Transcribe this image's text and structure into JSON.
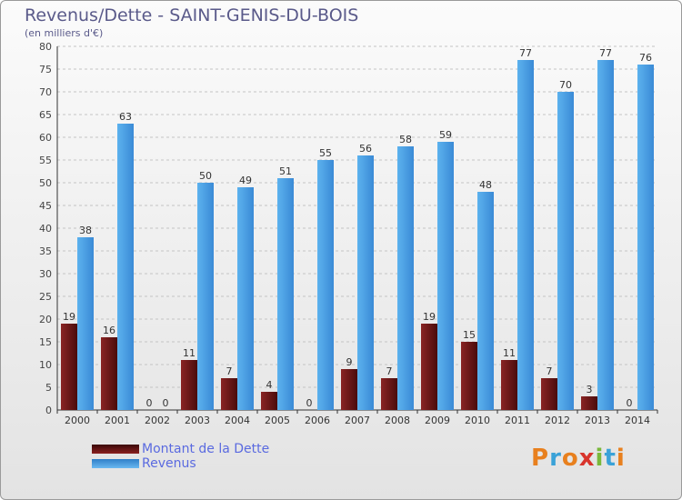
{
  "chart_data": {
    "type": "bar",
    "title": "Revenus/Dette - SAINT-GENIS-DU-BOIS",
    "subtitle": "(en milliers d'€)",
    "categories": [
      "2000",
      "2001",
      "2002",
      "2003",
      "2004",
      "2005",
      "2006",
      "2007",
      "2008",
      "2009",
      "2010",
      "2011",
      "2012",
      "2013",
      "2014"
    ],
    "series": [
      {
        "name": "Montant de la Dette",
        "color": "#7a1a1a",
        "values": [
          19,
          16,
          0,
          11,
          7,
          4,
          0,
          9,
          7,
          19,
          15,
          11,
          7,
          3,
          0
        ]
      },
      {
        "name": "Revenus",
        "color": "#4fa3e6",
        "values": [
          38,
          63,
          0,
          50,
          49,
          51,
          55,
          56,
          58,
          59,
          48,
          77,
          70,
          77,
          76
        ]
      }
    ],
    "yticks": [
      0,
      5,
      10,
      15,
      20,
      25,
      30,
      35,
      40,
      45,
      50,
      55,
      60,
      65,
      70,
      75,
      80
    ],
    "ylim": [
      0,
      80
    ],
    "legend_position": "bottom-left"
  },
  "logo": {
    "text": "Proxiti"
  }
}
